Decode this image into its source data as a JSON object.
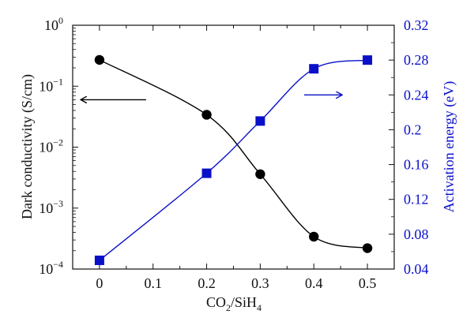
{
  "chart_data": {
    "type": "scatter",
    "title": "",
    "xlabel_main": "CO",
    "xlabel_sub1": "2",
    "xlabel_mid": "/SiH",
    "xlabel_sub2": "4",
    "ylabel_left": "Dark conductivity (S/cm)",
    "ylabel_right": "Activation energy (eV)",
    "xlim": [
      -0.05,
      0.55
    ],
    "left_ylim": [
      0.0001,
      1
    ],
    "left_scale": "log",
    "right_ylim": [
      0.04,
      0.32
    ],
    "grid": false,
    "x_ticks": [
      {
        "value": 0,
        "label": "0"
      },
      {
        "value": 0.1,
        "label": "0.1"
      },
      {
        "value": 0.2,
        "label": "0.2"
      },
      {
        "value": 0.3,
        "label": "0.3"
      },
      {
        "value": 0.4,
        "label": "0.4"
      },
      {
        "value": 0.5,
        "label": "0.5"
      }
    ],
    "left_ticks": [
      {
        "value": 0.0001,
        "base": "10",
        "exp": "−4"
      },
      {
        "value": 0.001,
        "base": "10",
        "exp": "−3"
      },
      {
        "value": 0.01,
        "base": "10",
        "exp": "−2"
      },
      {
        "value": 0.1,
        "base": "10",
        "exp": "−1"
      },
      {
        "value": 1,
        "base": "10",
        "exp": "0"
      }
    ],
    "right_ticks": [
      {
        "value": 0.04,
        "label": "0.04"
      },
      {
        "value": 0.08,
        "label": "0.08"
      },
      {
        "value": 0.12,
        "label": "0.12"
      },
      {
        "value": 0.16,
        "label": "0.16"
      },
      {
        "value": 0.2,
        "label": "0.2"
      },
      {
        "value": 0.24,
        "label": "0.24"
      },
      {
        "value": 0.28,
        "label": "0.28"
      },
      {
        "value": 0.32,
        "label": "0.32"
      }
    ],
    "series": [
      {
        "axis": "left",
        "marker": "circle",
        "color": "#000000",
        "x": [
          0,
          0.2,
          0.3,
          0.4,
          0.5
        ],
        "values": [
          0.27,
          0.034,
          0.0036,
          0.00034,
          0.00022
        ]
      },
      {
        "axis": "right",
        "marker": "square",
        "color": "#0a10c8",
        "x": [
          0,
          0.2,
          0.3,
          0.4,
          0.5
        ],
        "values": [
          0.05,
          0.15,
          0.21,
          0.27,
          0.28
        ]
      }
    ],
    "annotations": [
      {
        "type": "arrow",
        "direction": "left",
        "color": "#000000"
      },
      {
        "type": "arrow",
        "direction": "right",
        "color": "#0a10c8"
      }
    ]
  }
}
